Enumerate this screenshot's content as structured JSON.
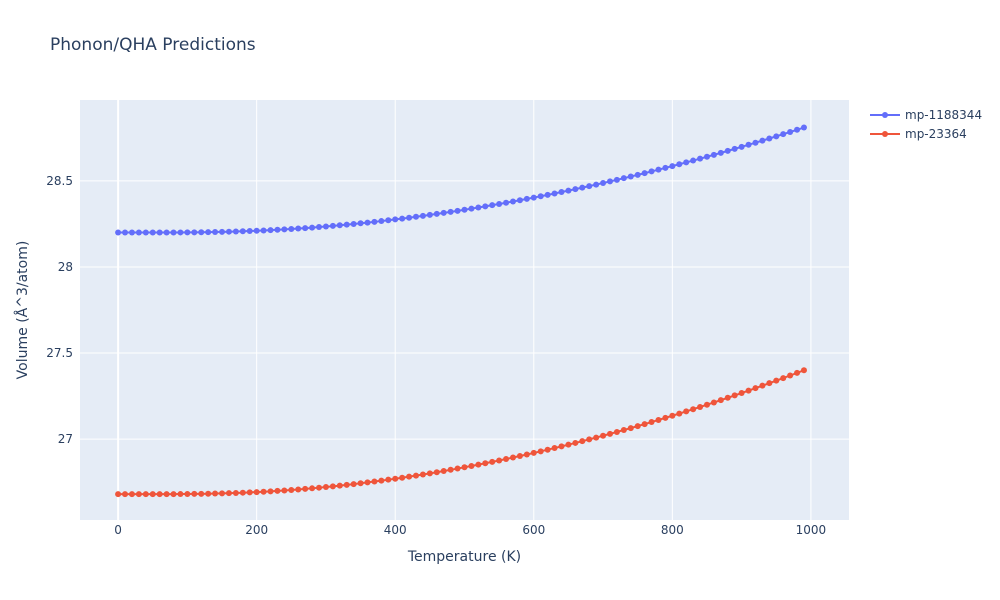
{
  "chart_data": {
    "type": "line",
    "title": "Phonon/QHA Predictions",
    "xlabel": "Temperature (K)",
    "ylabel": "Volume (Å^3/atom)",
    "xlim": [
      -55,
      1055
    ],
    "ylim": [
      26.53,
      28.97
    ],
    "xticks": [
      0,
      200,
      400,
      600,
      800,
      1000
    ],
    "xtick_labels": [
      "0",
      "200",
      "400",
      "600",
      "800",
      "1000"
    ],
    "yticks": [
      27,
      27.5,
      28,
      28.5
    ],
    "ytick_labels": [
      "27",
      "27.5",
      "28",
      "28.5"
    ],
    "grid": true,
    "legend_position": "top-right",
    "x": {
      "start": 0,
      "step": 10,
      "count": 100
    },
    "series": [
      {
        "name": "mp-1188344",
        "color": "#636efa",
        "v0": 28.2,
        "v_end": 28.81
      },
      {
        "name": "mp-23364",
        "color": "#ef553b",
        "v0": 26.68,
        "v_end": 27.4
      }
    ]
  }
}
